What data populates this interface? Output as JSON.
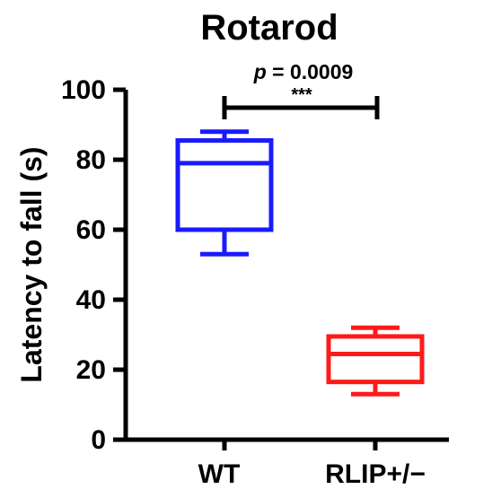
{
  "chart_data": {
    "type": "box",
    "title": "Rotarod",
    "xlabel": "",
    "ylabel": "Latency to fall (s)",
    "ylim": [
      0,
      100
    ],
    "yticks": [
      "0",
      "20",
      "40",
      "60",
      "80",
      "100"
    ],
    "categories": [
      "WT",
      "RLIP+/−"
    ],
    "boxes": [
      {
        "category": "WT",
        "min": 53,
        "q1": 60,
        "median": 79,
        "q3": 85.5,
        "max": 88,
        "color": "#1a1aff"
      },
      {
        "category": "RLIP+/−",
        "min": 13,
        "q1": 16.5,
        "median": 24.5,
        "q3": 29.5,
        "max": 32,
        "color": "#ff1a1a"
      }
    ],
    "significance": {
      "p_label": "p",
      "p_value": " = 0.0009",
      "stars": "***",
      "between": [
        "WT",
        "RLIP+/−"
      ]
    }
  }
}
